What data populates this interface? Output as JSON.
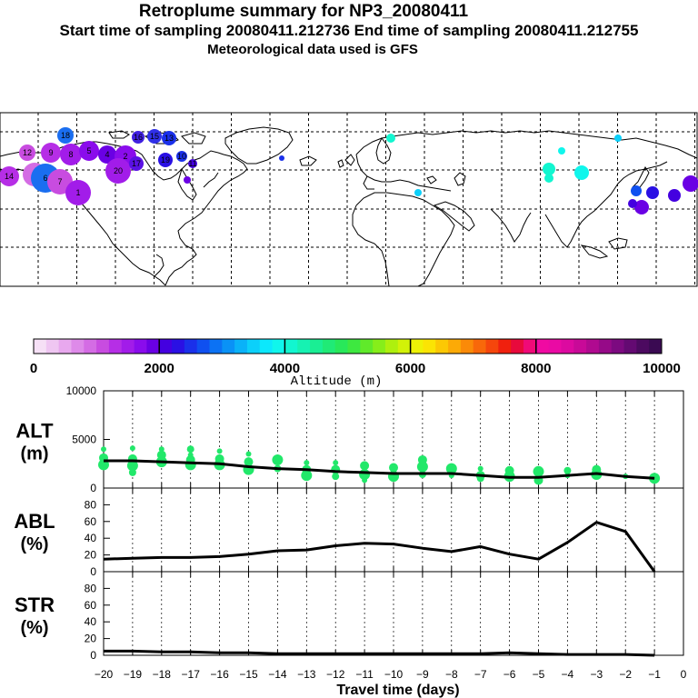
{
  "header": {
    "title": "Retroplume summary for NP3_20080411",
    "subtitle": "Start time of sampling 20080411.212736     End time of sampling 20080411.212755",
    "meteo": "Meteorological data used is GFS"
  },
  "colorbar": {
    "tick_labels": [
      "0",
      "2000",
      "4000",
      "6000",
      "8000",
      "10000"
    ],
    "title": "Altitude (m)",
    "colors": [
      "#f6e0f6",
      "#efc6f2",
      "#e8a8ee",
      "#de8ae9",
      "#d46ce4",
      "#c84ce0",
      "#b62ee6",
      "#a21ce9",
      "#8a0cec",
      "#6a00e4",
      "#4400e0",
      "#2a10e4",
      "#1a30ea",
      "#0f50f0",
      "#0c72f4",
      "#0a92f6",
      "#0ab2f8",
      "#0cd0fa",
      "#0ce8fc",
      "#10f6ec",
      "#12f6d0",
      "#16f2b2",
      "#1aee94",
      "#20ea76",
      "#28e85a",
      "#3ee840",
      "#60ea2a",
      "#86ee1a",
      "#aef00e",
      "#d2f208",
      "#eef206",
      "#fbe404",
      "#fcc804",
      "#fcaa06",
      "#fa8a08",
      "#f8680a",
      "#f5460c",
      "#f0200e",
      "#e80a3c",
      "#f00a78",
      "#f00aa2",
      "#ea0aa4",
      "#dc0aa0",
      "#c80a98",
      "#b00a90",
      "#960a88",
      "#7c0a80",
      "#640a72",
      "#4c0a60",
      "#3a0a52"
    ]
  },
  "map": {
    "plume_labels": [
      "18",
      "16",
      "15",
      "13",
      "12",
      "9",
      "8",
      "5",
      "4",
      "2",
      "20",
      "17",
      "19",
      "10",
      "11",
      "14",
      "3",
      "6",
      "7",
      "1"
    ]
  },
  "chart_data": [
    {
      "type": "line",
      "panel": "ALT",
      "ylabel": "ALT\n(m)",
      "ylabel_lines": [
        "ALT",
        "(m)"
      ],
      "ylim": [
        0,
        10000
      ],
      "yticks": [
        0,
        5000,
        10000
      ],
      "ytick_labels": [
        "0",
        "5000",
        "10000"
      ],
      "x": [
        -20,
        -19,
        -18,
        -17,
        -16,
        -15,
        -14,
        -13,
        -12,
        -11,
        -10,
        -9,
        -8,
        -7,
        -6,
        -5,
        -4,
        -3,
        -2,
        -1
      ],
      "values": [
        2800,
        2800,
        2700,
        2600,
        2500,
        2200,
        2000,
        1900,
        1700,
        1600,
        1500,
        1500,
        1500,
        1300,
        1100,
        1100,
        1300,
        1500,
        1200,
        1000
      ],
      "dots": [
        [
          -20,
          2400
        ],
        [
          -20,
          3100
        ],
        [
          -20,
          4000
        ],
        [
          -19,
          2300
        ],
        [
          -19,
          3000
        ],
        [
          -19,
          4100
        ],
        [
          -19,
          1600
        ],
        [
          -18,
          2700
        ],
        [
          -18,
          3400
        ],
        [
          -18,
          4000
        ],
        [
          -17,
          2400
        ],
        [
          -17,
          2900
        ],
        [
          -17,
          3400
        ],
        [
          -17,
          4000
        ],
        [
          -16,
          2400
        ],
        [
          -16,
          3000
        ],
        [
          -16,
          3800
        ],
        [
          -15,
          1900
        ],
        [
          -15,
          2700
        ],
        [
          -15,
          3500
        ],
        [
          -14,
          2000
        ],
        [
          -14,
          2900
        ],
        [
          -13,
          1900
        ],
        [
          -13,
          2600
        ],
        [
          -13,
          1300
        ],
        [
          -12,
          1900
        ],
        [
          -12,
          2600
        ],
        [
          -12,
          1200
        ],
        [
          -11,
          1400
        ],
        [
          -11,
          2300
        ],
        [
          -11,
          800
        ],
        [
          -10,
          1200
        ],
        [
          -10,
          2100
        ],
        [
          -10,
          1700
        ],
        [
          -9,
          1400
        ],
        [
          -9,
          2200
        ],
        [
          -9,
          2900
        ],
        [
          -8,
          1300
        ],
        [
          -8,
          2000
        ],
        [
          -7,
          1300
        ],
        [
          -7,
          2000
        ],
        [
          -7,
          1000
        ],
        [
          -6,
          1200
        ],
        [
          -6,
          1800
        ],
        [
          -5,
          1200
        ],
        [
          -5,
          1700
        ],
        [
          -5,
          800
        ],
        [
          -4,
          1300
        ],
        [
          -4,
          1800
        ],
        [
          -3,
          1400
        ],
        [
          -3,
          1900
        ],
        [
          -2,
          1200
        ],
        [
          -1,
          1000
        ]
      ]
    },
    {
      "type": "line",
      "panel": "ABL",
      "ylabel": "ABL\n(%)",
      "ylabel_lines": [
        "ABL",
        "(%)"
      ],
      "ylim": [
        0,
        100
      ],
      "yticks": [
        0,
        20,
        40,
        60,
        80
      ],
      "ytick_labels": [
        "0",
        "20",
        "40",
        "60",
        "80"
      ],
      "x": [
        -20,
        -19,
        -18,
        -17,
        -16,
        -15,
        -14,
        -13,
        -12,
        -11,
        -10,
        -9,
        -8,
        -7,
        -6,
        -5,
        -4,
        -3,
        -2,
        -1
      ],
      "values": [
        15,
        16,
        17,
        17,
        18,
        21,
        25,
        26,
        31,
        34,
        33,
        28,
        24,
        30,
        21,
        15,
        35,
        59,
        48,
        0
      ]
    },
    {
      "type": "line",
      "panel": "STR",
      "ylabel": "STR\n(%)",
      "ylabel_lines": [
        "STR",
        "(%)"
      ],
      "ylim": [
        0,
        100
      ],
      "yticks": [
        0,
        20,
        40,
        60,
        80
      ],
      "ytick_labels": [
        "0",
        "20",
        "40",
        "60",
        "80"
      ],
      "x": [
        -20,
        -19,
        -18,
        -17,
        -16,
        -15,
        -14,
        -13,
        -12,
        -11,
        -10,
        -9,
        -8,
        -7,
        -6,
        -5,
        -4,
        -3,
        -2,
        -1
      ],
      "values": [
        5,
        5,
        4,
        4,
        3,
        3,
        2,
        2,
        2,
        2,
        2,
        2,
        2,
        2,
        3,
        2,
        1,
        1,
        1,
        0
      ]
    }
  ],
  "xaxis": {
    "ticks": [
      -20,
      -19,
      -18,
      -17,
      -16,
      -15,
      -14,
      -13,
      -12,
      -11,
      -10,
      -9,
      -8,
      -7,
      -6,
      -5,
      -4,
      -3,
      -2,
      -1,
      0
    ],
    "tick_labels": [
      "−20",
      "−19",
      "−18",
      "−17",
      "−16",
      "−15",
      "−14",
      "−13",
      "−12",
      "−11",
      "−10",
      "−9",
      "−8",
      "−7",
      "−6",
      "−5",
      "−4",
      "−3",
      "−2",
      "−1",
      "0"
    ],
    "xlabel": "Travel time (days)",
    "xlim": [
      -20,
      0
    ]
  },
  "colors": {
    "dots": "#22e86a",
    "line": "#000000"
  }
}
